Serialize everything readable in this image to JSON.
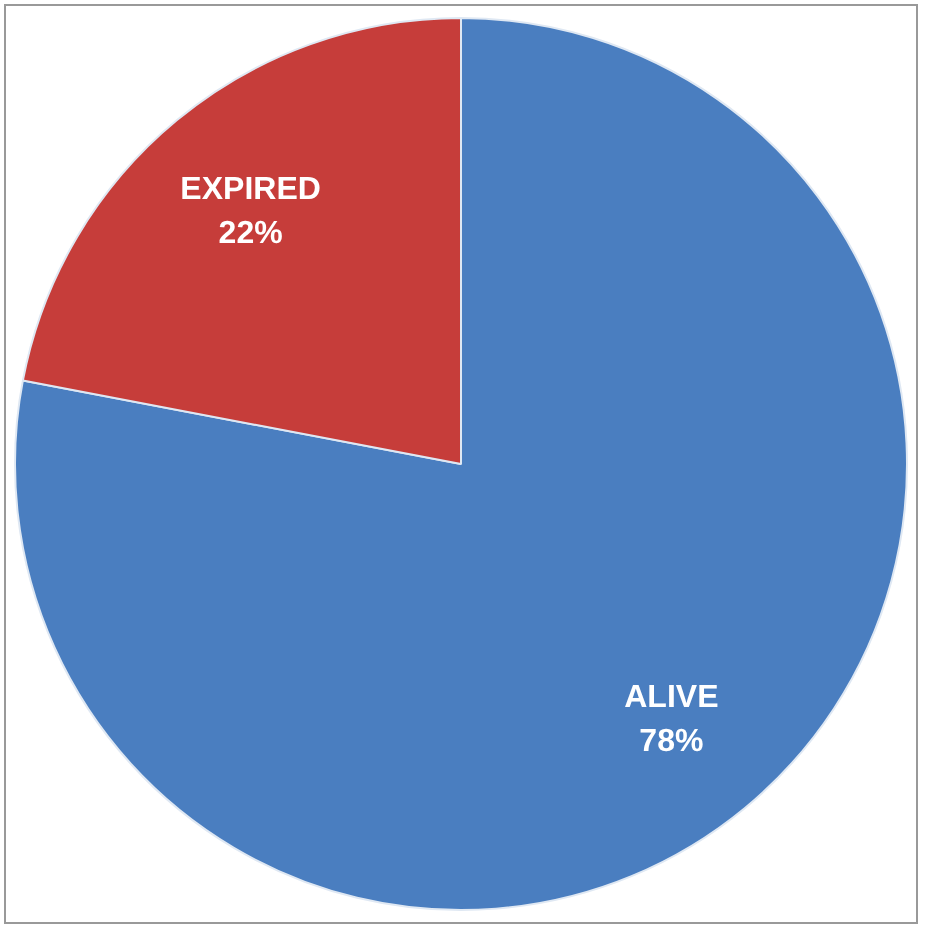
{
  "chart_data": {
    "type": "pie",
    "categories": [
      "ALIVE",
      "EXPIRED"
    ],
    "values": [
      78,
      22
    ],
    "colors": [
      "#4a7ec0",
      "#c63d3a"
    ],
    "value_labels": [
      "78%",
      "22%"
    ],
    "legend": false
  }
}
